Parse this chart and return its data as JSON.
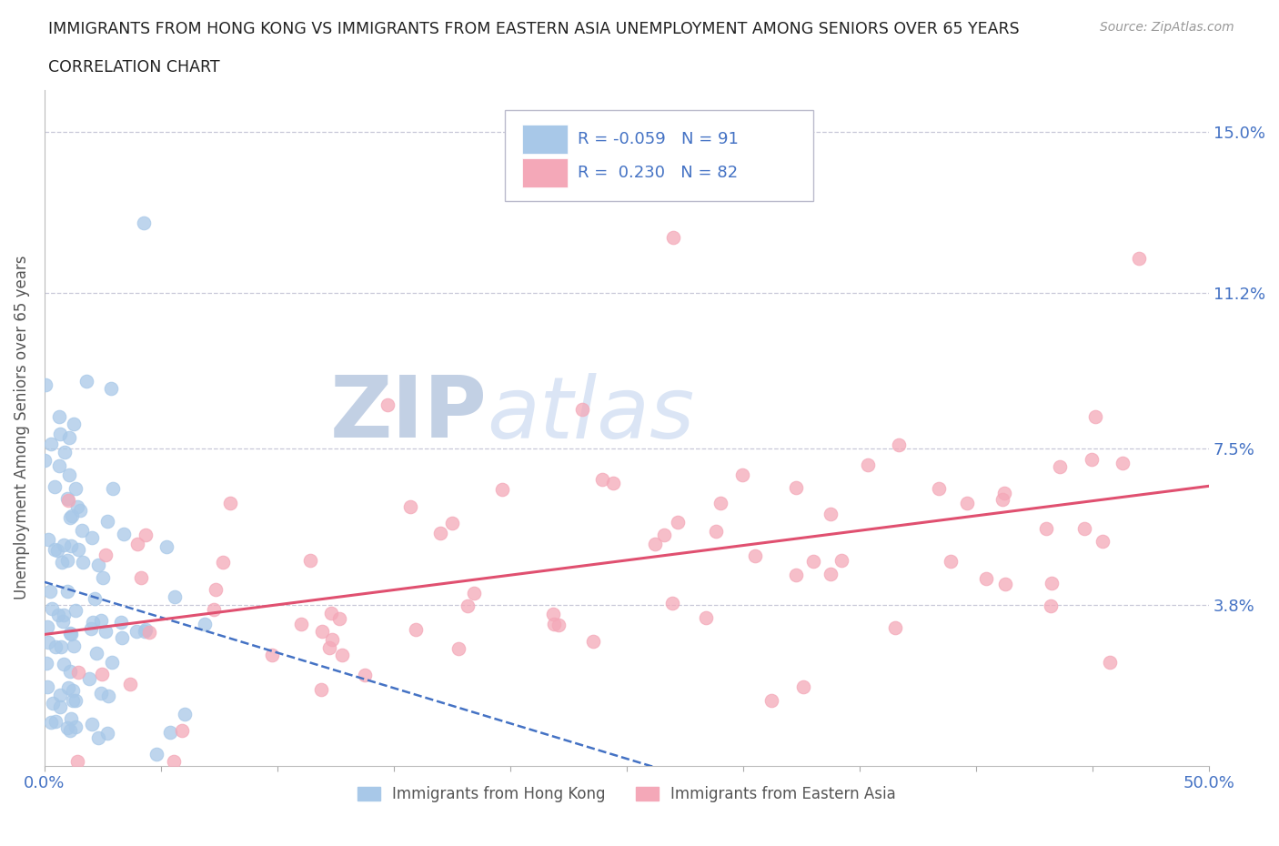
{
  "title_line1": "IMMIGRANTS FROM HONG KONG VS IMMIGRANTS FROM EASTERN ASIA UNEMPLOYMENT AMONG SENIORS OVER 65 YEARS",
  "title_line2": "CORRELATION CHART",
  "source_text": "Source: ZipAtlas.com",
  "ylabel": "Unemployment Among Seniors over 65 years",
  "xlim": [
    0,
    0.5
  ],
  "ylim": [
    0,
    0.16
  ],
  "xticks": [
    0.0,
    0.05,
    0.1,
    0.15,
    0.2,
    0.25,
    0.3,
    0.35,
    0.4,
    0.45,
    0.5
  ],
  "xticklabels": [
    "0.0%",
    "",
    "",
    "",
    "",
    "",
    "",
    "",
    "",
    "",
    "50.0%"
  ],
  "ytick_positions": [
    0.038,
    0.075,
    0.112,
    0.15
  ],
  "ytick_labels": [
    "3.8%",
    "7.5%",
    "11.2%",
    "15.0%"
  ],
  "hk_color": "#a8c8e8",
  "ea_color": "#f4a8b8",
  "hk_trend_color": "#4472c4",
  "ea_trend_color": "#e05070",
  "hk_R": -0.059,
  "hk_N": 91,
  "ea_R": 0.23,
  "ea_N": 82,
  "legend_label_hk": "Immigrants from Hong Kong",
  "legend_label_ea": "Immigrants from Eastern Asia",
  "background_color": "#ffffff",
  "grid_color": "#c8c8d8",
  "title_color": "#222222",
  "axis_label_color": "#555555",
  "tick_label_color": "#4472c4",
  "legend_box_color": "#c0c8d8",
  "hk_scatter_seed": 7,
  "ea_scatter_seed": 13
}
